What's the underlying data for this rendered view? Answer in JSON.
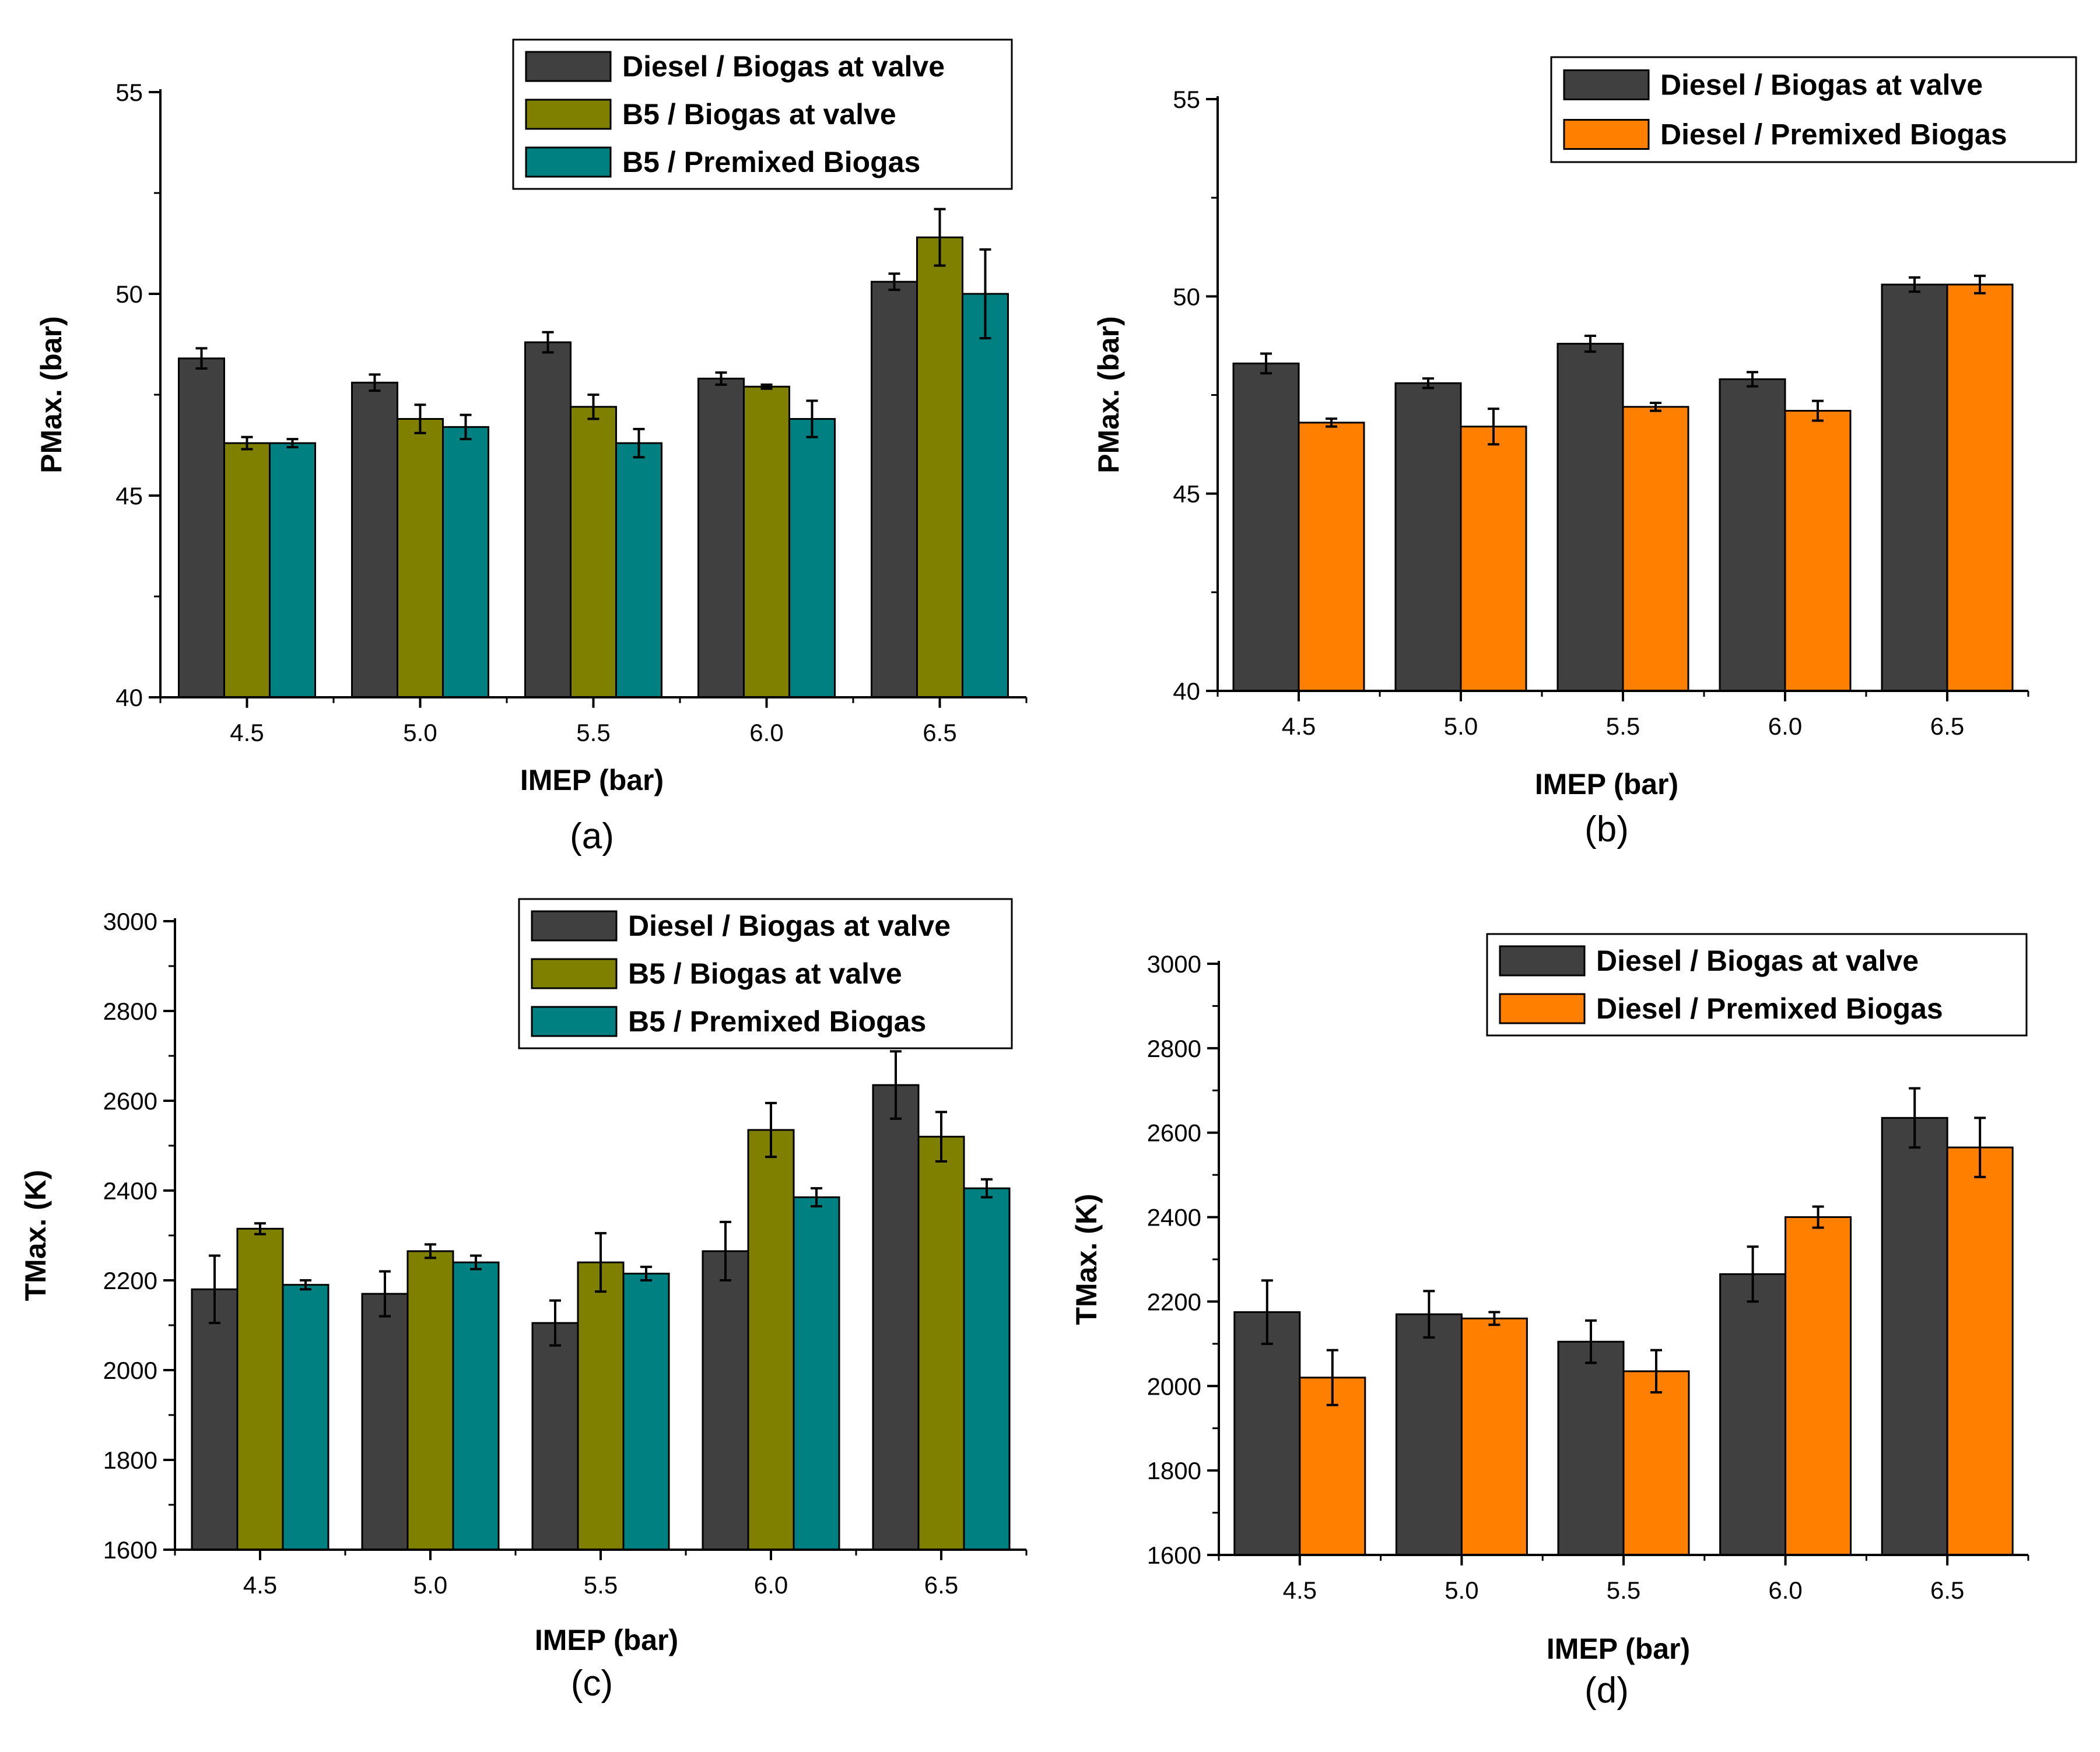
{
  "colors": {
    "diesel_valve": "#404040",
    "b5_valve": "#808000",
    "b5_premixed": "#008080",
    "diesel_premixed": "#ff8000",
    "axis": "#000000"
  },
  "chart_data": [
    {
      "type": "bar",
      "panel": "(a)",
      "categories": [
        "4.5",
        "5.0",
        "5.5",
        "6.0",
        "6.5"
      ],
      "xlabel": "IMEP (bar)",
      "ylabel": "PMax. (bar)",
      "ylim": [
        40,
        55
      ],
      "yticks": [
        40,
        45,
        50,
        55
      ],
      "legend_position": "top-right",
      "series": [
        {
          "name": "Diesel / Biogas at valve",
          "color_key": "diesel_valve",
          "values": [
            48.4,
            47.8,
            48.8,
            47.9,
            50.3
          ],
          "errors": [
            0.25,
            0.2,
            0.25,
            0.15,
            0.2
          ]
        },
        {
          "name": "B5 / Biogas at valve",
          "color_key": "b5_valve",
          "values": [
            46.3,
            46.9,
            47.2,
            47.7,
            51.4
          ],
          "errors": [
            0.15,
            0.35,
            0.3,
            0.05,
            0.7
          ]
        },
        {
          "name": "B5 / Premixed Biogas",
          "color_key": "b5_premixed",
          "values": [
            46.3,
            46.7,
            46.3,
            46.9,
            50.0
          ],
          "errors": [
            0.1,
            0.3,
            0.35,
            0.45,
            1.1
          ]
        }
      ]
    },
    {
      "type": "bar",
      "panel": "(b)",
      "categories": [
        "4.5",
        "5.0",
        "5.5",
        "6.0",
        "6.5"
      ],
      "xlabel": "IMEP (bar)",
      "ylabel": "PMax. (bar)",
      "ylim": [
        40,
        55
      ],
      "yticks": [
        40,
        45,
        50,
        55
      ],
      "legend_position": "top-right",
      "series": [
        {
          "name": "Diesel / Biogas at valve",
          "color_key": "diesel_valve",
          "values": [
            48.3,
            47.8,
            48.8,
            47.9,
            50.3
          ],
          "errors": [
            0.25,
            0.12,
            0.2,
            0.18,
            0.18
          ]
        },
        {
          "name": "Diesel / Premixed Biogas",
          "color_key": "diesel_premixed",
          "values": [
            46.8,
            46.7,
            47.2,
            47.1,
            50.3
          ],
          "errors": [
            0.1,
            0.45,
            0.1,
            0.25,
            0.22
          ]
        }
      ]
    },
    {
      "type": "bar",
      "panel": "(c)",
      "categories": [
        "4.5",
        "5.0",
        "5.5",
        "6.0",
        "6.5"
      ],
      "xlabel": "IMEP (bar)",
      "ylabel": "TMax. (K)",
      "ylim": [
        1600,
        3000
      ],
      "yticks": [
        1600,
        1800,
        2000,
        2200,
        2400,
        2600,
        2800,
        3000
      ],
      "legend_position": "top-right",
      "series": [
        {
          "name": "Diesel / Biogas at valve",
          "color_key": "diesel_valve",
          "values": [
            2180,
            2170,
            2105,
            2265,
            2635
          ],
          "errors": [
            75,
            50,
            50,
            65,
            75
          ]
        },
        {
          "name": "B5 / Biogas at valve",
          "color_key": "b5_valve",
          "values": [
            2315,
            2265,
            2240,
            2535,
            2520
          ],
          "errors": [
            12,
            15,
            65,
            60,
            55
          ]
        },
        {
          "name": "B5 / Premixed Biogas",
          "color_key": "b5_premixed",
          "values": [
            2190,
            2240,
            2215,
            2385,
            2405
          ],
          "errors": [
            10,
            15,
            15,
            20,
            20
          ]
        }
      ]
    },
    {
      "type": "bar",
      "panel": "(d)",
      "categories": [
        "4.5",
        "5.0",
        "5.5",
        "6.0",
        "6.5"
      ],
      "xlabel": "IMEP (bar)",
      "ylabel": "TMax. (K)",
      "ylim": [
        1600,
        3000
      ],
      "yticks": [
        1600,
        1800,
        2000,
        2200,
        2400,
        2600,
        2800,
        3000
      ],
      "legend_position": "top-right",
      "series": [
        {
          "name": "Diesel / Biogas at valve",
          "color_key": "diesel_valve",
          "values": [
            2175,
            2170,
            2105,
            2265,
            2635
          ],
          "errors": [
            75,
            55,
            50,
            65,
            70
          ]
        },
        {
          "name": "Diesel / Premixed Biogas",
          "color_key": "diesel_premixed",
          "values": [
            2020,
            2160,
            2035,
            2400,
            2565
          ],
          "errors": [
            65,
            15,
            50,
            25,
            70
          ]
        }
      ]
    }
  ]
}
